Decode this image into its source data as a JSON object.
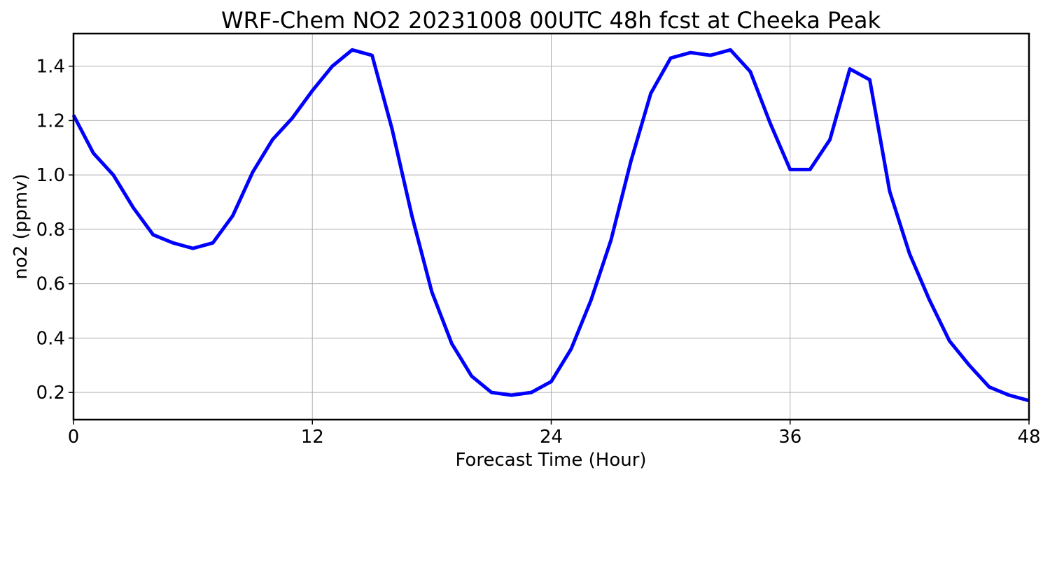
{
  "chart_data": {
    "type": "line",
    "title": "WRF-Chem NO2  20231008 00UTC 48h fcst at Cheeka Peak",
    "xlabel": "Forecast Time (Hour)",
    "ylabel": "no2  (ppmv)",
    "xlim": [
      0,
      48
    ],
    "ylim": [
      0.1,
      1.52
    ],
    "xticks": [
      0,
      12,
      24,
      36,
      48
    ],
    "xtick_labels": [
      "0",
      "12",
      "24",
      "36",
      "48"
    ],
    "yticks": [
      0.2,
      0.4,
      0.6,
      0.8,
      1.0,
      1.2,
      1.4
    ],
    "ytick_labels": [
      "0.2",
      "0.4",
      "0.6",
      "0.8",
      "1.0",
      "1.2",
      "1.4"
    ],
    "grid": true,
    "line_color": "#0000ff",
    "x": [
      0,
      1,
      2,
      3,
      4,
      5,
      6,
      7,
      8,
      9,
      10,
      11,
      12,
      13,
      14,
      15,
      16,
      17,
      18,
      19,
      20,
      21,
      22,
      23,
      24,
      25,
      26,
      27,
      28,
      29,
      30,
      31,
      32,
      33,
      34,
      35,
      36,
      37,
      38,
      39,
      40,
      41,
      42,
      43,
      44,
      45,
      46,
      47,
      48
    ],
    "series": [
      {
        "values": [
          1.22,
          1.08,
          1.0,
          0.88,
          0.78,
          0.75,
          0.73,
          0.75,
          0.85,
          1.01,
          1.13,
          1.21,
          1.31,
          1.4,
          1.46,
          1.44,
          1.17,
          0.85,
          0.57,
          0.38,
          0.26,
          0.2,
          0.19,
          0.2,
          0.24,
          0.36,
          0.54,
          0.76,
          1.05,
          1.3,
          1.43,
          1.45,
          1.44,
          1.46,
          1.38,
          1.19,
          1.02,
          1.02,
          1.13,
          1.39,
          1.35,
          0.94,
          0.71,
          0.54,
          0.39,
          0.3,
          0.22,
          0.19,
          0.17
        ]
      }
    ]
  }
}
